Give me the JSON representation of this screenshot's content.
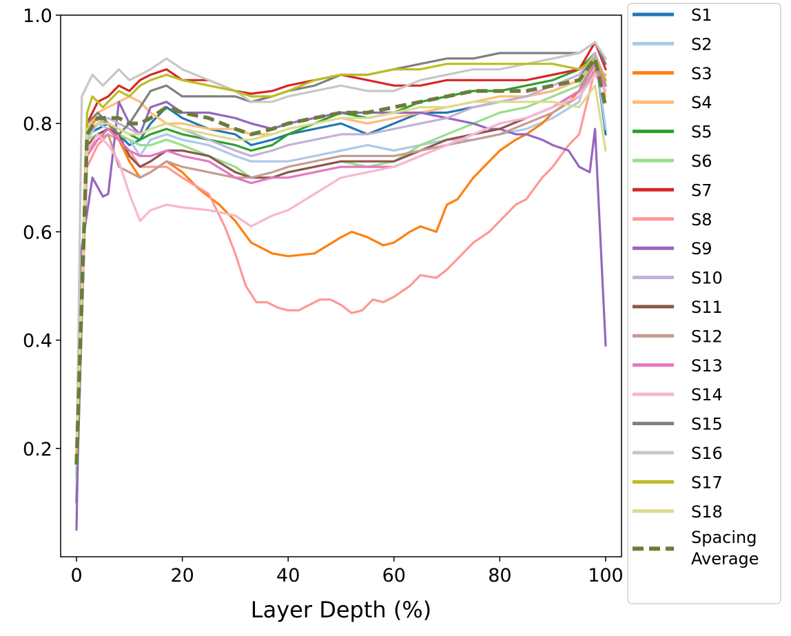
{
  "chart_data": {
    "type": "line",
    "title": "",
    "xlabel": "Layer Depth (%)",
    "ylabel": "",
    "xlim": [
      -3,
      103
    ],
    "ylim": [
      0.0,
      1.0
    ],
    "xticks": [
      0,
      20,
      40,
      60,
      80,
      100
    ],
    "xtick_labels": [
      "0",
      "20",
      "40",
      "60",
      "80",
      "100"
    ],
    "yticks": [
      0.2,
      0.4,
      0.6,
      0.8,
      1.0
    ],
    "ytick_labels": [
      "0.2",
      "0.4",
      "0.6",
      "0.8",
      "1.0"
    ],
    "grid": false,
    "legend_position": "outside-right",
    "series": [
      {
        "name": "S1",
        "color": "#1f77b4",
        "x": [
          0,
          2,
          4,
          6,
          8,
          10,
          12,
          14,
          17,
          20,
          25,
          30,
          33,
          37,
          40,
          45,
          50,
          55,
          60,
          65,
          70,
          75,
          80,
          85,
          90,
          95,
          98,
          100
        ],
        "values": [
          0.1,
          0.78,
          0.79,
          0.8,
          0.78,
          0.76,
          0.77,
          0.8,
          0.83,
          0.81,
          0.79,
          0.78,
          0.76,
          0.77,
          0.78,
          0.79,
          0.8,
          0.78,
          0.8,
          0.82,
          0.82,
          0.83,
          0.84,
          0.85,
          0.86,
          0.88,
          0.93,
          0.78
        ]
      },
      {
        "name": "S2",
        "color": "#aec7e8",
        "x": [
          0,
          2,
          4,
          6,
          8,
          10,
          12,
          14,
          17,
          20,
          25,
          30,
          33,
          37,
          40,
          45,
          50,
          55,
          60,
          65,
          70,
          75,
          80,
          85,
          90,
          95,
          98,
          100
        ],
        "values": [
          0.14,
          0.77,
          0.8,
          0.79,
          0.78,
          0.77,
          0.74,
          0.77,
          0.78,
          0.77,
          0.76,
          0.74,
          0.73,
          0.73,
          0.73,
          0.74,
          0.75,
          0.76,
          0.75,
          0.76,
          0.77,
          0.77,
          0.78,
          0.79,
          0.81,
          0.84,
          0.93,
          0.79
        ]
      },
      {
        "name": "S3",
        "color": "#ff7f0e",
        "x": [
          0,
          2,
          4,
          6,
          8,
          10,
          12,
          14,
          17,
          20,
          23,
          27,
          30,
          33,
          37,
          40,
          45,
          50,
          52,
          55,
          58,
          60,
          63,
          65,
          68,
          70,
          72,
          75,
          78,
          80,
          83,
          85,
          88,
          90,
          93,
          95,
          98,
          100
        ],
        "values": [
          0.18,
          0.79,
          0.81,
          0.8,
          0.77,
          0.73,
          0.7,
          0.71,
          0.73,
          0.71,
          0.68,
          0.65,
          0.62,
          0.58,
          0.56,
          0.555,
          0.56,
          0.59,
          0.6,
          0.59,
          0.575,
          0.58,
          0.6,
          0.61,
          0.6,
          0.65,
          0.66,
          0.7,
          0.73,
          0.75,
          0.77,
          0.78,
          0.8,
          0.82,
          0.84,
          0.86,
          0.92,
          0.88
        ]
      },
      {
        "name": "S4",
        "color": "#ffbb78",
        "x": [
          0,
          2,
          4,
          6,
          8,
          10,
          12,
          14,
          17,
          20,
          25,
          30,
          33,
          37,
          40,
          45,
          50,
          55,
          60,
          65,
          70,
          75,
          80,
          85,
          90,
          95,
          98,
          100
        ],
        "values": [
          0.2,
          0.79,
          0.82,
          0.83,
          0.84,
          0.85,
          0.84,
          0.82,
          0.8,
          0.8,
          0.79,
          0.79,
          0.78,
          0.78,
          0.79,
          0.8,
          0.81,
          0.8,
          0.81,
          0.82,
          0.83,
          0.84,
          0.85,
          0.85,
          0.86,
          0.88,
          0.92,
          0.85
        ]
      },
      {
        "name": "S5",
        "color": "#2ca02c",
        "x": [
          0,
          2,
          4,
          6,
          8,
          10,
          12,
          14,
          17,
          20,
          25,
          30,
          33,
          37,
          40,
          45,
          50,
          55,
          60,
          65,
          70,
          75,
          80,
          85,
          90,
          95,
          98,
          100
        ],
        "values": [
          0.15,
          0.79,
          0.8,
          0.8,
          0.79,
          0.78,
          0.77,
          0.78,
          0.79,
          0.78,
          0.77,
          0.76,
          0.75,
          0.76,
          0.78,
          0.8,
          0.82,
          0.81,
          0.82,
          0.84,
          0.85,
          0.86,
          0.86,
          0.87,
          0.88,
          0.9,
          0.93,
          0.87
        ]
      },
      {
        "name": "S6",
        "color": "#98df8a",
        "x": [
          0,
          2,
          4,
          6,
          8,
          10,
          12,
          14,
          17,
          20,
          25,
          30,
          33,
          37,
          40,
          45,
          50,
          55,
          60,
          65,
          70,
          75,
          80,
          85,
          90,
          95,
          98,
          100
        ],
        "values": [
          0.14,
          0.77,
          0.78,
          0.79,
          0.78,
          0.77,
          0.76,
          0.76,
          0.77,
          0.76,
          0.74,
          0.72,
          0.7,
          0.7,
          0.71,
          0.72,
          0.73,
          0.72,
          0.73,
          0.76,
          0.78,
          0.8,
          0.82,
          0.83,
          0.85,
          0.87,
          0.92,
          0.88
        ]
      },
      {
        "name": "S7",
        "color": "#d62728",
        "x": [
          0,
          2,
          4,
          6,
          8,
          10,
          12,
          14,
          17,
          20,
          25,
          30,
          33,
          37,
          40,
          45,
          50,
          55,
          60,
          65,
          70,
          75,
          80,
          85,
          90,
          95,
          98,
          100
        ],
        "values": [
          0.18,
          0.8,
          0.84,
          0.85,
          0.87,
          0.86,
          0.88,
          0.89,
          0.9,
          0.88,
          0.88,
          0.86,
          0.855,
          0.86,
          0.87,
          0.88,
          0.89,
          0.88,
          0.87,
          0.87,
          0.88,
          0.88,
          0.88,
          0.88,
          0.89,
          0.9,
          0.95,
          0.9
        ]
      },
      {
        "name": "S8",
        "color": "#ff9896",
        "x": [
          0,
          2,
          4,
          6,
          8,
          10,
          12,
          14,
          17,
          20,
          25,
          28,
          30,
          32,
          34,
          36,
          38,
          40,
          42,
          44,
          46,
          48,
          50,
          52,
          54,
          56,
          58,
          60,
          63,
          65,
          68,
          70,
          72,
          75,
          78,
          80,
          83,
          85,
          88,
          90,
          93,
          95,
          98,
          100
        ],
        "values": [
          0.2,
          0.72,
          0.76,
          0.78,
          0.77,
          0.75,
          0.72,
          0.72,
          0.72,
          0.7,
          0.67,
          0.61,
          0.56,
          0.5,
          0.47,
          0.47,
          0.46,
          0.455,
          0.455,
          0.465,
          0.475,
          0.475,
          0.465,
          0.45,
          0.455,
          0.475,
          0.47,
          0.48,
          0.5,
          0.52,
          0.515,
          0.53,
          0.55,
          0.58,
          0.6,
          0.62,
          0.65,
          0.66,
          0.7,
          0.72,
          0.76,
          0.78,
          0.9,
          0.89
        ]
      },
      {
        "name": "S9",
        "color": "#9467bd",
        "x": [
          0,
          1,
          3,
          5,
          6,
          8,
          10,
          12,
          14,
          17,
          20,
          25,
          30,
          33,
          37,
          40,
          45,
          50,
          55,
          60,
          65,
          70,
          75,
          78,
          80,
          83,
          85,
          88,
          90,
          93,
          95,
          97,
          98,
          100
        ],
        "values": [
          0.05,
          0.57,
          0.7,
          0.665,
          0.67,
          0.84,
          0.8,
          0.78,
          0.83,
          0.84,
          0.82,
          0.82,
          0.81,
          0.8,
          0.79,
          0.8,
          0.81,
          0.82,
          0.82,
          0.82,
          0.82,
          0.81,
          0.8,
          0.79,
          0.79,
          0.78,
          0.78,
          0.77,
          0.76,
          0.75,
          0.72,
          0.71,
          0.79,
          0.39
        ]
      },
      {
        "name": "S10",
        "color": "#c5b0d5",
        "x": [
          0,
          2,
          4,
          6,
          8,
          10,
          12,
          14,
          17,
          20,
          25,
          30,
          33,
          37,
          40,
          45,
          50,
          55,
          60,
          65,
          70,
          75,
          80,
          85,
          90,
          95,
          98,
          100
        ],
        "values": [
          0.17,
          0.78,
          0.8,
          0.81,
          0.8,
          0.79,
          0.78,
          0.79,
          0.8,
          0.79,
          0.77,
          0.75,
          0.74,
          0.75,
          0.76,
          0.77,
          0.78,
          0.78,
          0.79,
          0.8,
          0.81,
          0.83,
          0.84,
          0.85,
          0.87,
          0.89,
          0.93,
          0.88
        ]
      },
      {
        "name": "S11",
        "color": "#8c564b",
        "x": [
          0,
          2,
          4,
          6,
          8,
          10,
          12,
          14,
          17,
          20,
          25,
          30,
          33,
          37,
          40,
          45,
          50,
          55,
          60,
          65,
          70,
          75,
          80,
          85,
          90,
          95,
          98,
          100
        ],
        "values": [
          0.18,
          0.76,
          0.78,
          0.79,
          0.78,
          0.74,
          0.72,
          0.73,
          0.75,
          0.75,
          0.74,
          0.71,
          0.7,
          0.7,
          0.71,
          0.72,
          0.73,
          0.73,
          0.73,
          0.75,
          0.77,
          0.78,
          0.79,
          0.81,
          0.83,
          0.86,
          0.91,
          0.87
        ]
      },
      {
        "name": "S12",
        "color": "#c49c94",
        "x": [
          0,
          2,
          4,
          6,
          8,
          10,
          12,
          14,
          17,
          20,
          25,
          30,
          33,
          37,
          40,
          45,
          50,
          55,
          60,
          65,
          70,
          75,
          80,
          85,
          90,
          95,
          98,
          100
        ],
        "values": [
          0.17,
          0.75,
          0.77,
          0.78,
          0.72,
          0.71,
          0.7,
          0.71,
          0.73,
          0.72,
          0.71,
          0.7,
          0.7,
          0.71,
          0.72,
          0.73,
          0.74,
          0.74,
          0.74,
          0.75,
          0.76,
          0.77,
          0.78,
          0.8,
          0.82,
          0.85,
          0.9,
          0.86
        ]
      },
      {
        "name": "S13",
        "color": "#e377c2",
        "x": [
          0,
          2,
          4,
          6,
          8,
          10,
          12,
          14,
          17,
          20,
          25,
          30,
          33,
          37,
          40,
          45,
          50,
          55,
          60,
          65,
          70,
          75,
          80,
          85,
          90,
          95,
          98,
          100
        ],
        "values": [
          0.19,
          0.74,
          0.77,
          0.79,
          0.77,
          0.75,
          0.74,
          0.74,
          0.75,
          0.74,
          0.73,
          0.7,
          0.69,
          0.7,
          0.7,
          0.71,
          0.72,
          0.72,
          0.72,
          0.74,
          0.76,
          0.78,
          0.8,
          0.81,
          0.83,
          0.86,
          0.91,
          0.87
        ]
      },
      {
        "name": "S14",
        "color": "#f7b6d2",
        "x": [
          0,
          2,
          4,
          6,
          8,
          10,
          12,
          14,
          17,
          20,
          25,
          30,
          33,
          37,
          40,
          45,
          50,
          55,
          60,
          65,
          70,
          75,
          80,
          85,
          90,
          95,
          98,
          100
        ],
        "values": [
          0.21,
          0.75,
          0.78,
          0.76,
          0.73,
          0.67,
          0.62,
          0.64,
          0.65,
          0.645,
          0.64,
          0.63,
          0.61,
          0.63,
          0.64,
          0.67,
          0.7,
          0.71,
          0.72,
          0.74,
          0.76,
          0.78,
          0.8,
          0.81,
          0.83,
          0.85,
          0.89,
          0.86
        ]
      },
      {
        "name": "S15",
        "color": "#7f7f7f",
        "x": [
          0,
          2,
          4,
          6,
          8,
          10,
          12,
          14,
          17,
          20,
          25,
          30,
          33,
          37,
          40,
          45,
          50,
          55,
          60,
          65,
          70,
          75,
          80,
          85,
          90,
          95,
          98,
          100
        ],
        "values": [
          0.18,
          0.8,
          0.82,
          0.8,
          0.78,
          0.8,
          0.83,
          0.86,
          0.87,
          0.85,
          0.85,
          0.85,
          0.84,
          0.85,
          0.86,
          0.87,
          0.89,
          0.89,
          0.9,
          0.91,
          0.92,
          0.92,
          0.93,
          0.93,
          0.93,
          0.93,
          0.95,
          0.91
        ]
      },
      {
        "name": "S16",
        "color": "#c7c7c7",
        "x": [
          0,
          1,
          3,
          5,
          8,
          10,
          12,
          14,
          17,
          20,
          25,
          30,
          33,
          37,
          40,
          45,
          50,
          55,
          60,
          65,
          70,
          75,
          80,
          85,
          90,
          95,
          98,
          100
        ],
        "values": [
          0.17,
          0.85,
          0.89,
          0.87,
          0.9,
          0.88,
          0.89,
          0.9,
          0.92,
          0.9,
          0.88,
          0.86,
          0.84,
          0.84,
          0.85,
          0.86,
          0.87,
          0.86,
          0.86,
          0.88,
          0.89,
          0.9,
          0.9,
          0.91,
          0.92,
          0.93,
          0.95,
          0.92
        ]
      },
      {
        "name": "S17",
        "color": "#bcbd22",
        "x": [
          0,
          2,
          3,
          5,
          8,
          10,
          12,
          14,
          17,
          20,
          25,
          30,
          33,
          37,
          40,
          45,
          50,
          55,
          60,
          65,
          70,
          75,
          80,
          85,
          90,
          95,
          98,
          100
        ],
        "values": [
          0.18,
          0.82,
          0.85,
          0.83,
          0.86,
          0.85,
          0.87,
          0.88,
          0.89,
          0.88,
          0.87,
          0.86,
          0.85,
          0.85,
          0.86,
          0.88,
          0.89,
          0.89,
          0.9,
          0.9,
          0.91,
          0.91,
          0.91,
          0.91,
          0.91,
          0.9,
          0.92,
          0.88
        ]
      },
      {
        "name": "S18",
        "color": "#dbdb8d",
        "x": [
          0,
          2,
          4,
          6,
          8,
          10,
          12,
          14,
          17,
          20,
          25,
          30,
          33,
          37,
          40,
          45,
          50,
          55,
          60,
          65,
          70,
          75,
          80,
          85,
          90,
          95,
          98,
          100
        ],
        "values": [
          0.2,
          0.79,
          0.8,
          0.8,
          0.79,
          0.78,
          0.78,
          0.79,
          0.8,
          0.79,
          0.78,
          0.77,
          0.77,
          0.78,
          0.79,
          0.8,
          0.81,
          0.81,
          0.82,
          0.83,
          0.83,
          0.84,
          0.84,
          0.84,
          0.84,
          0.83,
          0.87,
          0.75
        ]
      },
      {
        "name": "Spacing Average",
        "color": "#6b7c3b",
        "dashed": true,
        "x": [
          0,
          2,
          4,
          6,
          8,
          10,
          12,
          14,
          17,
          20,
          25,
          30,
          33,
          37,
          40,
          45,
          50,
          55,
          60,
          65,
          70,
          75,
          80,
          85,
          90,
          95,
          98,
          100
        ],
        "values": [
          0.17,
          0.78,
          0.81,
          0.81,
          0.81,
          0.8,
          0.8,
          0.81,
          0.83,
          0.82,
          0.81,
          0.79,
          0.78,
          0.79,
          0.8,
          0.81,
          0.82,
          0.82,
          0.83,
          0.84,
          0.85,
          0.86,
          0.86,
          0.86,
          0.87,
          0.88,
          0.92,
          0.83
        ]
      }
    ]
  }
}
